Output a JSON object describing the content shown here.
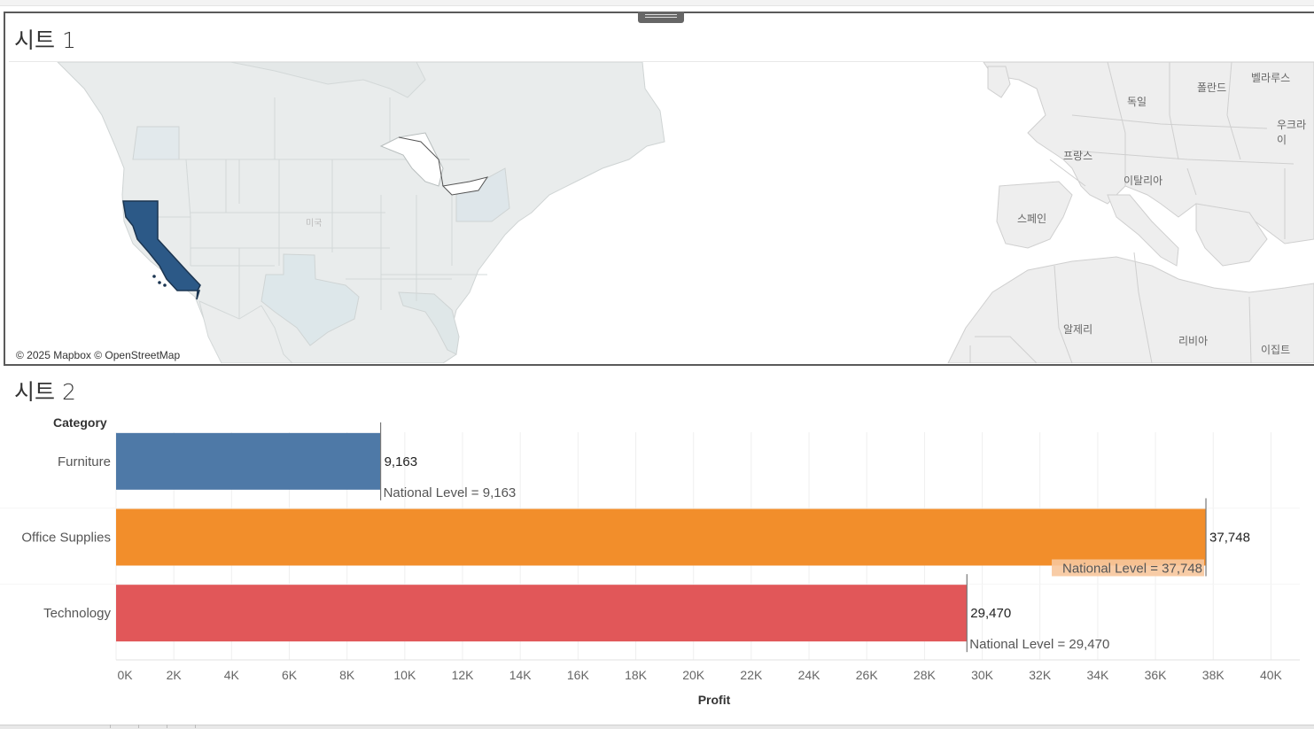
{
  "sheet1": {
    "title": "시트 1",
    "attribution": "© 2025 Mapbox © OpenStreetMap",
    "map_labels": [
      {
        "text": "폴란드"
      },
      {
        "text": "벨라루스"
      },
      {
        "text": "독일"
      },
      {
        "text": "우크라이"
      },
      {
        "text": "프랑스"
      },
      {
        "text": "이탈리아"
      },
      {
        "text": "스페인"
      },
      {
        "text": "알제리"
      },
      {
        "text": "리비아"
      },
      {
        "text": "이집트"
      },
      {
        "text": "미국"
      }
    ],
    "highlighted_state": "California",
    "highlight_color": "#2c5987"
  },
  "sheet2": {
    "title": "시트 2",
    "row_header": "Category",
    "x_axis_title": "Profit",
    "colors": {
      "Furniture": "#4e79a7",
      "Office Supplies": "#f28e2b",
      "Technology": "#e15759"
    },
    "chart_data": {
      "type": "bar",
      "orientation": "horizontal",
      "categories": [
        "Furniture",
        "Office Supplies",
        "Technology"
      ],
      "values": [
        9163,
        37748,
        29470
      ],
      "value_labels": [
        "9,163",
        "37,748",
        "29,470"
      ],
      "reference_lines": [
        {
          "category": "Furniture",
          "value": 9163,
          "label": "National Level = 9,163"
        },
        {
          "category": "Office Supplies",
          "value": 37748,
          "label": "National Level = 37,748"
        },
        {
          "category": "Technology",
          "value": 29470,
          "label": "National Level = 29,470"
        }
      ],
      "xlim": [
        0,
        41000
      ],
      "xticks": [
        0,
        2000,
        4000,
        6000,
        8000,
        10000,
        12000,
        14000,
        16000,
        18000,
        20000,
        22000,
        24000,
        26000,
        28000,
        30000,
        32000,
        34000,
        36000,
        38000,
        40000
      ],
      "xtick_labels": [
        "0K",
        "2K",
        "4K",
        "6K",
        "8K",
        "10K",
        "12K",
        "14K",
        "16K",
        "18K",
        "20K",
        "22K",
        "24K",
        "26K",
        "28K",
        "30K",
        "32K",
        "34K",
        "36K",
        "38K",
        "40K"
      ],
      "xlabel": "Profit",
      "ylabel": "Category",
      "grid": true
    }
  }
}
